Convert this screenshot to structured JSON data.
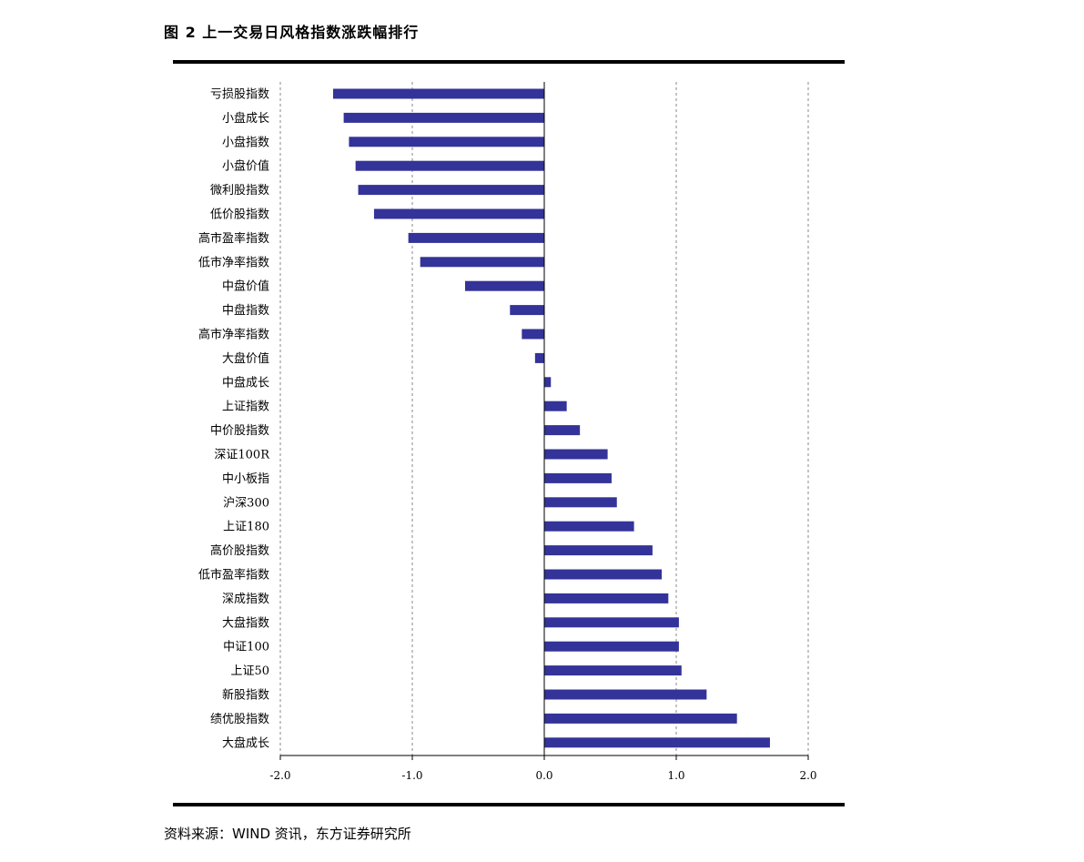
{
  "figure": {
    "title": "图 2  上一交易日风格指数涨跌幅排行",
    "source": "资料来源：WIND 资讯，东方证券研究所"
  },
  "chart_data": {
    "type": "bar",
    "orientation": "horizontal",
    "title": "",
    "xlabel": "",
    "ylabel": "",
    "xlim": [
      -2.0,
      2.0
    ],
    "xticks": [
      -2.0,
      -1.0,
      0.0,
      1.0,
      2.0
    ],
    "xtick_labels": [
      "-2.0",
      "-1.0",
      "0.0",
      "1.0",
      "2.0"
    ],
    "grid": "vertical dashed",
    "bar_color": "#333399",
    "categories": [
      "亏损股指数",
      "小盘成长",
      "小盘指数",
      "小盘价值",
      "微利股指数",
      "低价股指数",
      "高市盈率指数",
      "低市净率指数",
      "中盘价值",
      "中盘指数",
      "高市净率指数",
      "大盘价值",
      "中盘成长",
      "上证指数",
      "中价股指数",
      "深证100R",
      "中小板指",
      "沪深300",
      "上证180",
      "高价股指数",
      "低市盈率指数",
      "深成指数",
      "大盘指数",
      "中证100",
      "上证50",
      "新股指数",
      "绩优股指数",
      "大盘成长"
    ],
    "values": [
      -1.6,
      -1.52,
      -1.48,
      -1.43,
      -1.41,
      -1.29,
      -1.03,
      -0.94,
      -0.6,
      -0.26,
      -0.17,
      -0.07,
      0.05,
      0.17,
      0.27,
      0.48,
      0.51,
      0.55,
      0.68,
      0.82,
      0.89,
      0.94,
      1.02,
      1.02,
      1.04,
      1.23,
      1.46,
      1.71
    ]
  }
}
